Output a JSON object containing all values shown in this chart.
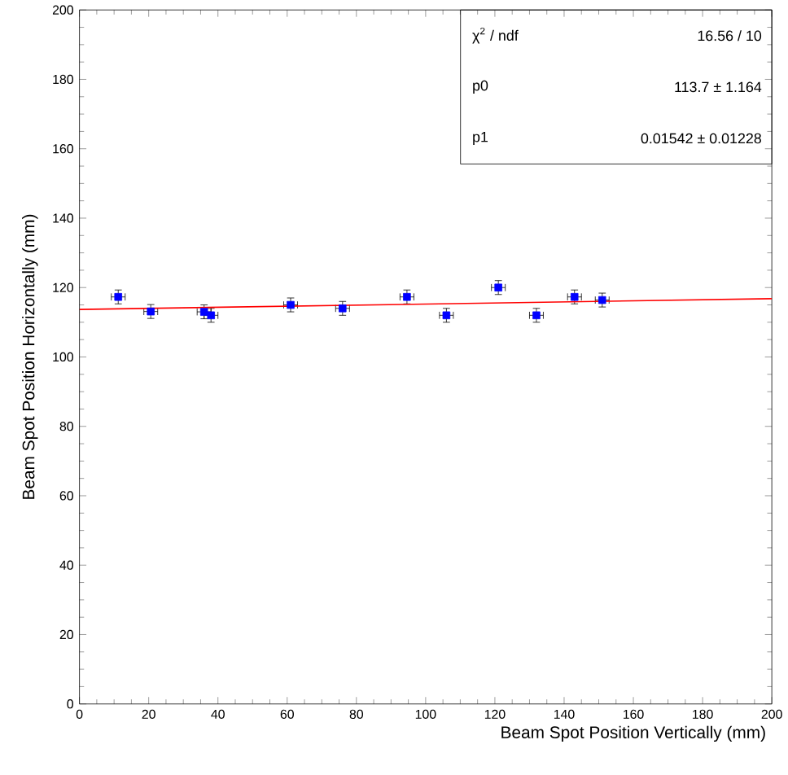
{
  "chart_data": {
    "type": "scatter",
    "xlabel": "Beam Spot Position Vertically (mm)",
    "ylabel": "Beam Spot Position Horizontally (mm)",
    "series": [
      {
        "type": "scatter",
        "color": "#0000ff",
        "marker": "square",
        "x": [
          11.2,
          20.6,
          36,
          38,
          61,
          76,
          94.6,
          106,
          121,
          132,
          143,
          151
        ],
        "values": [
          117.3,
          113.1,
          113,
          112,
          115,
          114,
          117.3,
          112,
          120,
          112,
          117.3,
          116.4
        ],
        "errors": [
          2,
          2,
          2,
          2,
          2,
          2,
          2,
          2,
          2,
          2,
          2,
          2
        ],
        "xerrors": [
          2,
          2,
          2,
          2,
          2,
          2,
          2,
          2,
          2,
          2,
          2,
          2
        ]
      },
      {
        "type": "line",
        "color": "#ff0000",
        "marker": "none",
        "x": [
          0,
          200
        ],
        "values": [
          113.7,
          116.8
        ]
      }
    ],
    "xlim": [
      0,
      200
    ],
    "ylim": [
      0,
      200
    ],
    "xticks": [
      0,
      20,
      40,
      60,
      80,
      100,
      120,
      140,
      160,
      180,
      200
    ],
    "yticks": [
      0,
      20,
      40,
      60,
      80,
      100,
      120,
      140,
      160,
      180,
      200
    ],
    "annotations": [
      "χ$^{2}$ / ndf",
      "16.56 / 10",
      "p0",
      "113.7 ± 1.164",
      "p1",
      "0.01542 ± 0.01228"
    ]
  }
}
